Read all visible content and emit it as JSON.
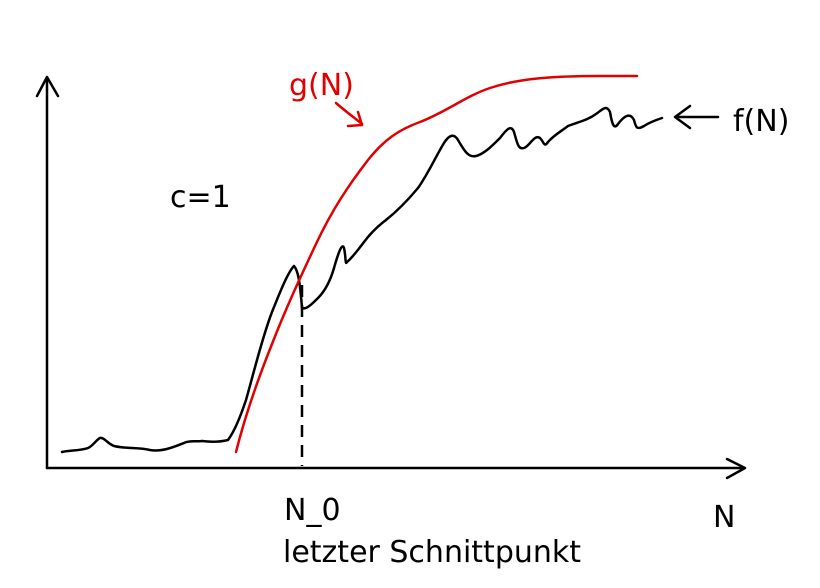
{
  "labels": {
    "g_curve": "g(N)",
    "f_curve": "f(N)",
    "constant": "c=1",
    "x_axis": "N",
    "n0": "N_0",
    "intersection_caption": "letzter Schnittpunkt"
  },
  "colors": {
    "g_curve": "#e00000",
    "f_curve": "#000000",
    "axes": "#000000",
    "background": "#ffffff"
  }
}
